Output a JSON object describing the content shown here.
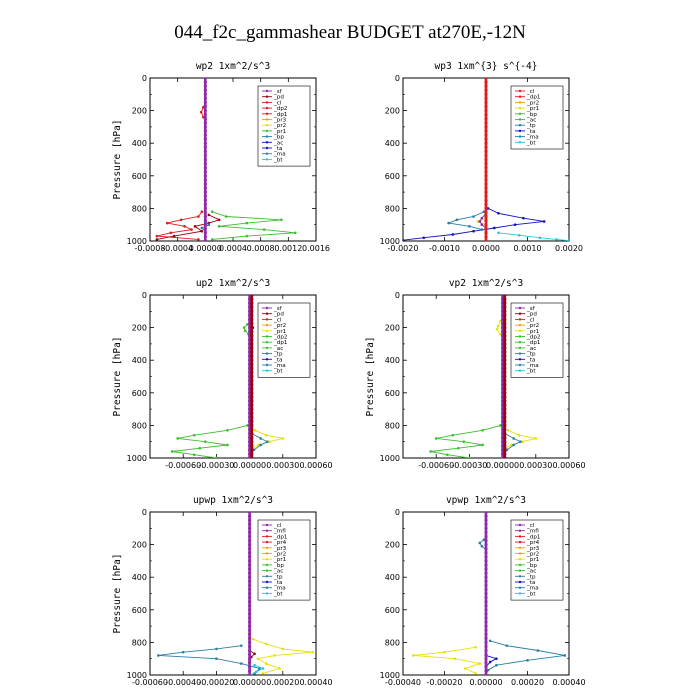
{
  "figure": {
    "title": "044_f2c_gammashear  BUDGET at270E,-12N"
  },
  "colors": {
    "purple": "#8f2aa8",
    "darkred": "#990012",
    "red": "#e31a1c",
    "pink": "#f4a6a6",
    "orange": "#ff9f00",
    "yellow": "#e8e000",
    "green": "#3cbf2e",
    "teal": "#2a7fa5",
    "blue": "#1010c8",
    "cyan": "#20c8e0",
    "axis": "#000000"
  },
  "chart_data": [
    {
      "type": "line",
      "title": "wp2   1xm^2/s^3",
      "ylabel": "Pressure [hPa]",
      "ylim": [
        1000,
        0
      ],
      "xlim": [
        -0.0008,
        0.0016
      ],
      "xticks": [
        "-0.0008",
        "-0.0004",
        "0.00000",
        "0.0004",
        "0.0008",
        "0.0012",
        "0.0016"
      ],
      "yticks": [
        "0",
        "200",
        "400",
        "600",
        "800",
        "1000"
      ],
      "legend": [
        "_sf",
        "_pd",
        "_cl",
        "_dp2",
        "_dp1",
        "_pr3",
        "_pr2",
        "_pr1",
        "_bp",
        "_ac",
        "_ta",
        "_ma",
        "_bt"
      ],
      "legend_colors": [
        "purple",
        "darkred",
        "red",
        "red",
        "red",
        "orange",
        "yellow",
        "green",
        "teal",
        "blue",
        "blue",
        "teal",
        "cyan"
      ],
      "series": [
        {
          "color": "green",
          "p": [
            820,
            850,
            870,
            890,
            910,
            930,
            950,
            970,
            990
          ],
          "v": [
            0.0001,
            0.0003,
            0.0011,
            0.0006,
            0.0002,
            0.00085,
            0.0013,
            0.0006,
            0.0001
          ]
        },
        {
          "color": "red",
          "p": [
            820,
            850,
            870,
            890,
            910,
            930,
            950,
            970,
            990
          ],
          "v": [
            -5e-05,
            -0.0001,
            -0.00035,
            -0.00055,
            -0.0003,
            -0.0002,
            -0.0005,
            -0.0007,
            -0.0001
          ]
        },
        {
          "color": "darkred",
          "p": [
            840,
            870,
            890,
            910,
            940,
            970,
            990
          ],
          "v": [
            5e-05,
            0.0002,
            5e-05,
            -0.00015,
            -5e-05,
            -0.00045,
            -0.0007
          ]
        },
        {
          "color": "red",
          "p": [
            150,
            180,
            210,
            240,
            260
          ],
          "v": [
            0,
            -3e-05,
            -6e-05,
            -3e-05,
            0
          ]
        },
        {
          "color": "teal",
          "p": [
            880,
            900,
            920,
            940
          ],
          "v": [
            0,
            5e-05,
            -5e-05,
            0
          ]
        },
        {
          "color": "purple",
          "p": [
            0,
            1000
          ],
          "v": [
            0,
            0
          ],
          "w": 2.6
        }
      ]
    },
    {
      "type": "line",
      "title": "wp3   1xm^{3} s^{-4}",
      "ylabel": "",
      "ylim": [
        1000,
        0
      ],
      "xlim": [
        -0.002,
        0.002
      ],
      "xticks": [
        "-0.0020",
        "-0.0010",
        "0.0000",
        "0.0010",
        "0.0020"
      ],
      "yticks": [
        "0",
        "200",
        "400",
        "600",
        "800",
        "1000"
      ],
      "legend": [
        "_cl",
        "_dp1",
        "_pr2",
        "_pr1",
        "_bp",
        "_ac",
        "_tp",
        "_ta",
        "_ma",
        "_bt"
      ],
      "legend_colors": [
        "red",
        "red",
        "orange",
        "yellow",
        "green",
        "green",
        "teal",
        "blue",
        "teal",
        "cyan"
      ],
      "series": [
        {
          "color": "blue",
          "p": [
            800,
            830,
            860,
            880,
            900,
            920,
            940,
            960,
            980,
            995
          ],
          "v": [
            5e-05,
            0.0003,
            0.0009,
            0.0014,
            0.0007,
            0.0002,
            -0.0003,
            -0.0008,
            -0.0015,
            -0.002
          ]
        },
        {
          "color": "teal",
          "p": [
            820,
            850,
            870,
            890,
            910,
            930
          ],
          "v": [
            -5e-05,
            -0.0003,
            -0.0007,
            -0.0009,
            -0.0004,
            -0.0001
          ]
        },
        {
          "color": "cyan",
          "p": [
            950,
            965,
            980,
            990,
            998
          ],
          "v": [
            0.0003,
            0.0008,
            0.0013,
            0.0017,
            0.002
          ]
        },
        {
          "color": "yellow",
          "p": [
            860,
            880,
            900
          ],
          "v": [
            0,
            -0.0002,
            0
          ]
        },
        {
          "color": "purple",
          "p": [
            830,
            860,
            880,
            900,
            920
          ],
          "v": [
            0,
            -0.0001,
            -0.00015,
            -0.0001,
            0
          ]
        },
        {
          "color": "red",
          "p": [
            0,
            1000
          ],
          "v": [
            0,
            0
          ],
          "w": 2.6
        }
      ]
    },
    {
      "type": "line",
      "title": "up2   1xm^2/s^3",
      "ylabel": "Pressure [hPa]",
      "ylim": [
        1000,
        0
      ],
      "xlim": [
        -0.0009,
        0.0006
      ],
      "xticks": [
        "-0.00060",
        "-0.00030",
        "0.00000",
        "0.00030",
        "0.00060"
      ],
      "yticks": [
        "0",
        "200",
        "400",
        "600",
        "800",
        "1000"
      ],
      "legend": [
        "_sf",
        "_pd",
        "_cl",
        "_pr2",
        "_pr1",
        "_dp2",
        "_dp1",
        "_ac",
        "_tp",
        "_ta",
        "_ma",
        "_bt"
      ],
      "legend_colors": [
        "purple",
        "darkred",
        "red",
        "orange",
        "yellow",
        "green",
        "green",
        "green",
        "teal",
        "blue",
        "teal",
        "cyan"
      ],
      "series": [
        {
          "color": "green",
          "p": [
            800,
            830,
            860,
            880,
            900,
            920,
            940,
            960,
            980,
            1000
          ],
          "v": [
            -2e-05,
            -0.0002,
            -0.0005,
            -0.00065,
            -0.0004,
            -0.0002,
            -0.00045,
            -0.0007,
            -0.0005,
            -0.0003
          ]
        },
        {
          "color": "green",
          "p": [
            180,
            200,
            220,
            240
          ],
          "v": [
            -2e-05,
            -5e-05,
            -4e-05,
            -1e-05
          ]
        },
        {
          "color": "yellow",
          "p": [
            830,
            860,
            880,
            900,
            920,
            940
          ],
          "v": [
            5e-05,
            0.00015,
            0.0003,
            0.00018,
            8e-05,
            3e-05
          ]
        },
        {
          "color": "teal",
          "p": [
            850,
            880,
            900,
            920,
            950,
            980
          ],
          "v": [
            2e-05,
            0.0001,
            0.00016,
            0.0001,
            4e-05,
            1e-05
          ]
        },
        {
          "color": "blue",
          "p": [
            180,
            200,
            220
          ],
          "v": [
            1e-05,
            3e-05,
            1e-05
          ]
        },
        {
          "color": "purple",
          "p": [
            0,
            1000
          ],
          "v": [
            0,
            0
          ],
          "w": 2.6
        },
        {
          "color": "darkred",
          "p": [
            0,
            1000
          ],
          "v": [
            2e-05,
            2e-05
          ],
          "w": 2.6
        }
      ]
    },
    {
      "type": "line",
      "title": "vp2   1xm^2/s^3",
      "ylabel": "Pressure [hPa]",
      "ylim": [
        1000,
        0
      ],
      "xlim": [
        -0.0009,
        0.0006
      ],
      "xticks": [
        "-0.00060",
        "-0.00030",
        "0.00000",
        "0.00030",
        "0.00060"
      ],
      "yticks": [
        "0",
        "200",
        "400",
        "600",
        "800",
        "1000"
      ],
      "legend": [
        "_sf",
        "_pd",
        "_cl",
        "_pr2",
        "_pr1",
        "_dp2",
        "_dp1",
        "_ac",
        "_tp",
        "_ta",
        "_ma",
        "_bt"
      ],
      "legend_colors": [
        "purple",
        "darkred",
        "red",
        "orange",
        "yellow",
        "green",
        "green",
        "green",
        "teal",
        "blue",
        "teal",
        "cyan"
      ],
      "series": [
        {
          "color": "green",
          "p": [
            800,
            830,
            860,
            880,
            900,
            920,
            940,
            960,
            980,
            1000
          ],
          "v": [
            -2e-05,
            -0.00018,
            -0.00045,
            -0.0006,
            -0.00035,
            -0.00018,
            -0.0004,
            -0.00065,
            -0.0005,
            -0.0003
          ]
        },
        {
          "color": "yellow",
          "p": [
            830,
            860,
            880,
            900,
            920,
            940
          ],
          "v": [
            5e-05,
            0.00015,
            0.0003,
            0.00018,
            8e-05,
            3e-05
          ]
        },
        {
          "color": "yellow",
          "p": [
            160,
            190,
            210,
            240
          ],
          "v": [
            -2e-05,
            -4e-05,
            -5e-05,
            -2e-05
          ]
        },
        {
          "color": "teal",
          "p": [
            850,
            880,
            900,
            920,
            950,
            980
          ],
          "v": [
            2e-05,
            0.0001,
            0.00016,
            0.0001,
            4e-05,
            1e-05
          ]
        },
        {
          "color": "purple",
          "p": [
            0,
            1000
          ],
          "v": [
            0,
            0
          ],
          "w": 2.6
        },
        {
          "color": "darkred",
          "p": [
            0,
            1000
          ],
          "v": [
            2e-05,
            2e-05
          ],
          "w": 2.6
        }
      ]
    },
    {
      "type": "line",
      "title": "upwp   1xm^2/s^3",
      "ylabel": "Pressure [hPa]",
      "ylim": [
        1000,
        0
      ],
      "xlim": [
        -0.0006,
        0.0004
      ],
      "xticks": [
        "-0.00060",
        "-0.00040",
        "-0.00020",
        "0.00000",
        "0.00020",
        "0.00040"
      ],
      "yticks": [
        "0",
        "200",
        "400",
        "600",
        "800",
        "1000"
      ],
      "legend": [
        "_cl",
        "_mfl",
        "_dp1",
        "_pr4",
        "_pr3",
        "_pr2",
        "_pr1",
        "_bp",
        "_ac",
        "_tp",
        "_ta",
        "_ma",
        "_bt"
      ],
      "legend_colors": [
        "purple",
        "purple",
        "red",
        "red",
        "orange",
        "orange",
        "yellow",
        "green",
        "green",
        "teal",
        "blue",
        "teal",
        "cyan"
      ],
      "series": [
        {
          "color": "yellow",
          "p": [
            780,
            810,
            840,
            860,
            880,
            900,
            930,
            960,
            990
          ],
          "v": [
            2e-05,
            0.0001,
            0.0002,
            0.00038,
            0.00015,
            5e-05,
            0.0001,
            0.00018,
            8e-05
          ]
        },
        {
          "color": "teal",
          "p": [
            820,
            840,
            860,
            880,
            900,
            930,
            960,
            990
          ],
          "v": [
            -5e-05,
            -0.0002,
            -0.0004,
            -0.00055,
            -0.0002,
            -5e-05,
            6e-05,
            3e-05
          ]
        },
        {
          "color": "cyan",
          "p": [
            940,
            960,
            980,
            1000
          ],
          "v": [
            3e-05,
            8e-05,
            4e-05,
            1e-05
          ]
        },
        {
          "color": "darkred",
          "p": [
            850,
            870,
            890,
            910
          ],
          "v": [
            0,
            3e-05,
            1e-05,
            0
          ]
        },
        {
          "color": "purple",
          "p": [
            0,
            1000
          ],
          "v": [
            0,
            0
          ],
          "w": 2.6
        }
      ]
    },
    {
      "type": "line",
      "title": "vpwp   1xm^2/s^3",
      "ylabel": "",
      "ylim": [
        1000,
        0
      ],
      "xlim": [
        -0.0004,
        0.0004
      ],
      "xticks": [
        "-0.00040",
        "-0.00020",
        "0.00000",
        "0.00020",
        "0.00040"
      ],
      "yticks": [
        "0",
        "200",
        "400",
        "600",
        "800",
        "1000"
      ],
      "legend": [
        "_cl",
        "_mfl",
        "_dp1",
        "_pr4",
        "_pr3",
        "_pr2",
        "_pr1",
        "_bp",
        "_ac",
        "_tp",
        "_ta",
        "_ma",
        "_bt"
      ],
      "legend_colors": [
        "purple",
        "purple",
        "red",
        "red",
        "orange",
        "orange",
        "yellow",
        "green",
        "green",
        "teal",
        "blue",
        "teal",
        "cyan"
      ],
      "series": [
        {
          "color": "teal",
          "p": [
            790,
            820,
            850,
            880,
            910,
            940,
            970,
            1000
          ],
          "v": [
            2e-05,
            0.0001,
            0.00025,
            0.00038,
            0.0002,
            5e-05,
            1e-05,
            0
          ]
        },
        {
          "color": "yellow",
          "p": [
            830,
            860,
            880,
            900,
            930,
            960,
            990
          ],
          "v": [
            -5e-05,
            -0.0002,
            -0.00035,
            -0.00015,
            -3e-05,
            -0.0001,
            -5e-05
          ]
        },
        {
          "color": "teal",
          "p": [
            170,
            190,
            210,
            230
          ],
          "v": [
            -1e-05,
            -3e-05,
            -2e-05,
            0
          ]
        },
        {
          "color": "blue",
          "p": [
            880,
            900,
            920,
            950
          ],
          "v": [
            0,
            5e-05,
            2e-05,
            0
          ]
        },
        {
          "color": "purple",
          "p": [
            0,
            1000
          ],
          "v": [
            0,
            0
          ],
          "w": 2.6
        }
      ]
    }
  ]
}
